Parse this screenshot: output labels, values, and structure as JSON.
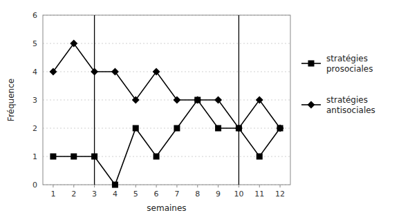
{
  "chart_data": {
    "type": "line",
    "x": [
      1,
      2,
      3,
      4,
      5,
      6,
      7,
      8,
      9,
      10,
      11,
      12
    ],
    "series": [
      {
        "name": "stratégies\nprosociales",
        "color": "#000000",
        "marker": "square",
        "values": [
          1,
          1,
          1,
          0,
          2,
          1,
          2,
          3,
          2,
          2,
          1,
          2
        ]
      },
      {
        "name": "stratégies\nantisociales",
        "color": "#000000",
        "marker": "diamond",
        "values": [
          4,
          5,
          4,
          4,
          3,
          4,
          3,
          3,
          3,
          2,
          3,
          2
        ]
      }
    ],
    "vlines": [
      3,
      10
    ],
    "x_label": "semaines",
    "y_label": "Fréquence",
    "xlim": [
      0.5,
      12.5
    ],
    "xticks": [
      1,
      2,
      3,
      4,
      5,
      6,
      7,
      8,
      9,
      10,
      11,
      12
    ],
    "ylim": [
      0,
      6
    ],
    "yticks": [
      0,
      1,
      2,
      3,
      4,
      5,
      6
    ],
    "grid": true,
    "legend": "right"
  }
}
